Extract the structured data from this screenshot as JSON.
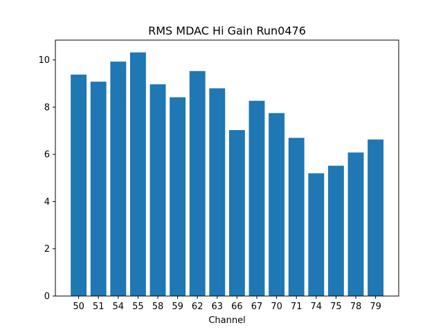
{
  "chart_data": {
    "type": "bar",
    "title": "RMS MDAC Hi Gain Run0476",
    "xlabel": "Channel",
    "ylabel": "",
    "categories": [
      "50",
      "51",
      "54",
      "55",
      "58",
      "59",
      "62",
      "63",
      "66",
      "67",
      "70",
      "71",
      "74",
      "75",
      "78",
      "79"
    ],
    "values": [
      9.38,
      9.08,
      9.93,
      10.32,
      8.97,
      8.42,
      9.53,
      8.8,
      7.03,
      8.27,
      7.75,
      6.7,
      5.2,
      5.52,
      6.08,
      6.63
    ],
    "ylim": [
      0,
      10.84
    ],
    "yticks": [
      0,
      2,
      4,
      6,
      8,
      10
    ],
    "bar_color": "#1f77b4",
    "grid": false,
    "legend": ""
  }
}
